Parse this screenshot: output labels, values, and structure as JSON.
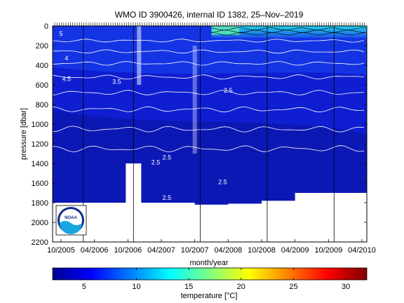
{
  "chart_data": [
    {
      "type": "heatmap",
      "title": "WMO ID 3900426, internal ID 1382, 25–Nov–2019",
      "xlabel": "month/year",
      "ylabel": "pressure [dbar]",
      "x_tick_labels": [
        "10/2005",
        "04/2006",
        "10/2006",
        "04/2007",
        "10/2007",
        "04/2008",
        "10/2008",
        "04/2009",
        "10/2009",
        "04/2010"
      ],
      "x_tick_values": [
        "2005-10",
        "2006-04",
        "2006-10",
        "2007-04",
        "2007-10",
        "2008-04",
        "2008-10",
        "2009-04",
        "2009-10",
        "2010-04"
      ],
      "y_ticks": [
        0,
        200,
        400,
        600,
        800,
        1000,
        1200,
        1400,
        1600,
        1800,
        2000,
        2200
      ],
      "ylim": [
        2200,
        0
      ],
      "y_inverted": true,
      "profile_max_pressure_dbar": [
        [
          "2005-10",
          1800
        ],
        [
          "2006-04",
          1800
        ],
        [
          "2006-10",
          1400
        ],
        [
          "2006-11",
          1800
        ],
        [
          "2007-04",
          1800
        ],
        [
          "2007-10",
          1820
        ],
        [
          "2008-04",
          1810
        ],
        [
          "2008-10",
          1780
        ],
        [
          "2009-04",
          1700
        ],
        [
          "2009-10",
          1700
        ],
        [
          "2010-04",
          1700
        ]
      ],
      "contour_labels": [
        {
          "value": "5",
          "x": "2005-10",
          "y": 100
        },
        {
          "value": "4",
          "x": "2005-11",
          "y": 350
        },
        {
          "value": "4.5",
          "x": "2005-11",
          "y": 560
        },
        {
          "value": "3.5",
          "x": "2006-08",
          "y": 590
        },
        {
          "value": "2.5",
          "x": "2007-03",
          "y": 1410
        },
        {
          "value": "2.5",
          "x": "2007-05",
          "y": 1360
        },
        {
          "value": "2.5",
          "x": "2007-05",
          "y": 1770
        },
        {
          "value": "2.5",
          "x": "2008-03",
          "y": 1610
        },
        {
          "value": "2.5",
          "x": "2008-04",
          "y": 680
        }
      ],
      "colorbar": {
        "label": "temperature [°C]",
        "ticks": [
          5,
          10,
          15,
          20,
          25,
          30
        ],
        "range": [
          2,
          32
        ],
        "colormap": "jet"
      },
      "logo": "NOAA",
      "grid": false
    }
  ]
}
